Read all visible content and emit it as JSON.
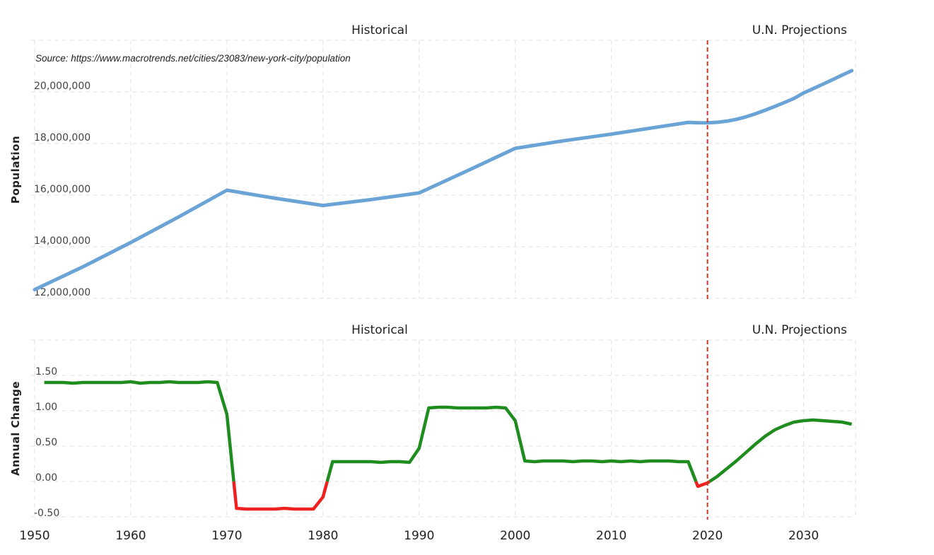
{
  "chart_data": [
    {
      "type": "line",
      "title": "",
      "ylabel": "Population",
      "source": "Source: https://www.macrotrends.net/cities/23083/new-york-city/population",
      "section_labels": {
        "historical": "Historical",
        "projections": "U.N. Projections"
      },
      "divider_year": 2020,
      "xlim": [
        1950,
        2035.4
      ],
      "ylim": [
        12000000,
        22000000
      ],
      "yticks": [
        12000000,
        14000000,
        16000000,
        18000000,
        20000000
      ],
      "ytick_labels": [
        "12,000,000",
        "14,000,000",
        "16,000,000",
        "18,000,000",
        "20,000,000"
      ],
      "grid": true,
      "series": [
        {
          "name": "Population",
          "color": "#6aa3d5",
          "x": [
            1950,
            1955,
            1960,
            1965,
            1970,
            1975,
            1980,
            1985,
            1990,
            1995,
            2000,
            2005,
            2010,
            2015,
            2018,
            2019,
            2020,
            2021,
            2022,
            2023,
            2024,
            2025,
            2026,
            2027,
            2028,
            2029,
            2030,
            2031,
            2032,
            2033,
            2034,
            2035
          ],
          "y": [
            12338471,
            13219000,
            14163606,
            15159000,
            16191000,
            15880000,
            15601000,
            15827000,
            16086000,
            16943000,
            17813000,
            18103000,
            18365000,
            18648000,
            18819000,
            18806000,
            18804000,
            18823000,
            18867000,
            18937000,
            19033000,
            19154000,
            19290000,
            19435000,
            19588000,
            19749000,
            19958000,
            20130000,
            20300000,
            20475000,
            20650000,
            20821000
          ]
        }
      ]
    },
    {
      "type": "line",
      "title": "",
      "ylabel": "Annual Change",
      "section_labels": {
        "historical": "Historical",
        "projections": "U.N. Projections"
      },
      "divider_year": 2020,
      "xlim": [
        1950,
        2035.4
      ],
      "ylim": [
        -0.5,
        2.0
      ],
      "yticks": [
        -0.5,
        0,
        0.5,
        1.0,
        1.5
      ],
      "ytick_labels": [
        "-0.50",
        "0.00",
        "0.50",
        "1.00",
        "1.50"
      ],
      "xticks": [
        1950,
        1960,
        1970,
        1980,
        1990,
        2000,
        2010,
        2020,
        2030
      ],
      "xtick_labels": [
        "1950",
        "1960",
        "1970",
        "1980",
        "1990",
        "2000",
        "2010",
        "2020",
        "2030"
      ],
      "grid": true,
      "positive_color": "#1e8c1e",
      "negative_color": "#f02020",
      "series": [
        {
          "name": "Annual Change",
          "x": [
            1951,
            1952,
            1953,
            1954,
            1955,
            1956,
            1957,
            1958,
            1959,
            1960,
            1961,
            1962,
            1963,
            1964,
            1965,
            1966,
            1967,
            1968,
            1969,
            1970,
            1971,
            1972,
            1973,
            1974,
            1975,
            1976,
            1977,
            1978,
            1979,
            1980,
            1981,
            1982,
            1983,
            1984,
            1985,
            1986,
            1987,
            1988,
            1989,
            1990,
            1991,
            1992,
            1993,
            1994,
            1995,
            1996,
            1997,
            1998,
            1999,
            2000,
            2001,
            2002,
            2003,
            2004,
            2005,
            2006,
            2007,
            2008,
            2009,
            2010,
            2011,
            2012,
            2013,
            2014,
            2015,
            2016,
            2017,
            2018,
            2019,
            2020,
            2021,
            2022,
            2023,
            2024,
            2025,
            2026,
            2027,
            2028,
            2029,
            2030,
            2031,
            2032,
            2033,
            2034,
            2035
          ],
          "y": [
            1.4,
            1.4,
            1.4,
            1.39,
            1.4,
            1.4,
            1.4,
            1.4,
            1.4,
            1.41,
            1.39,
            1.4,
            1.4,
            1.41,
            1.4,
            1.4,
            1.4,
            1.41,
            1.4,
            0.95,
            -0.38,
            -0.39,
            -0.39,
            -0.39,
            -0.39,
            -0.38,
            -0.39,
            -0.39,
            -0.39,
            -0.22,
            0.28,
            0.28,
            0.28,
            0.28,
            0.28,
            0.27,
            0.28,
            0.28,
            0.27,
            0.47,
            1.04,
            1.05,
            1.05,
            1.04,
            1.04,
            1.04,
            1.04,
            1.05,
            1.04,
            0.86,
            0.29,
            0.28,
            0.29,
            0.29,
            0.29,
            0.28,
            0.29,
            0.29,
            0.28,
            0.29,
            0.28,
            0.29,
            0.28,
            0.29,
            0.29,
            0.29,
            0.28,
            0.28,
            -0.07,
            -0.02,
            0.07,
            0.18,
            0.29,
            0.41,
            0.53,
            0.64,
            0.73,
            0.79,
            0.84,
            0.86,
            0.87,
            0.86,
            0.85,
            0.84,
            0.81
          ]
        }
      ]
    }
  ]
}
